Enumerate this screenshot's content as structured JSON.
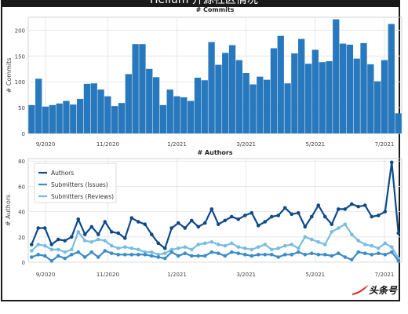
{
  "page": {
    "banner_title": "Helium 开源社区情况",
    "logo_text": "头条号"
  },
  "chart_data": [
    {
      "type": "bar",
      "title": "# Commits",
      "ylabel": "# Commits",
      "xlabel": "",
      "ylim": [
        0,
        225
      ],
      "yticks": [
        0,
        50,
        100,
        150,
        200
      ],
      "xticks": [
        "9/2020",
        "11/2020",
        "1/2021",
        "3/2021",
        "5/2021",
        "7/2021"
      ],
      "xtick_positions": [
        2,
        11,
        21,
        31,
        41,
        51
      ],
      "color": "#2878bd",
      "grid": true,
      "values": [
        55,
        106,
        52,
        55,
        58,
        63,
        56,
        67,
        96,
        97,
        85,
        72,
        53,
        59,
        115,
        173,
        173,
        125,
        109,
        55,
        85,
        72,
        70,
        63,
        108,
        103,
        177,
        133,
        156,
        171,
        142,
        117,
        95,
        110,
        104,
        165,
        189,
        97,
        155,
        183,
        135,
        162,
        138,
        140,
        221,
        174,
        172,
        145,
        175,
        134,
        101,
        142,
        212,
        39
      ]
    },
    {
      "type": "line",
      "title": "# Authors",
      "ylabel": "# Authors",
      "xlabel": "",
      "ylim": [
        0,
        82
      ],
      "yticks": [
        0,
        20,
        40,
        60,
        80
      ],
      "xticks": [
        "9/2020",
        "11/2020",
        "1/2021",
        "3/2021",
        "5/2021",
        "7/2021"
      ],
      "xtick_positions": [
        2,
        11,
        21,
        31,
        41,
        51
      ],
      "grid": true,
      "legend_position": "top-left",
      "series": [
        {
          "name": "Authors",
          "color": "#0d4a8a",
          "values": [
            14,
            27,
            27,
            14,
            18,
            17,
            20,
            34,
            22,
            28,
            22,
            32,
            24,
            23,
            19,
            35,
            32,
            30,
            22,
            15,
            11,
            27,
            31,
            27,
            33,
            28,
            31,
            42,
            30,
            33,
            36,
            34,
            37,
            39,
            29,
            32,
            36,
            37,
            43,
            38,
            39,
            28,
            36,
            45,
            36,
            30,
            42,
            42,
            46,
            44,
            45,
            36,
            37,
            40,
            79,
            23
          ]
        },
        {
          "name": "Submitters (Issues)",
          "color": "#3b8cc7",
          "values": [
            4,
            6,
            5,
            1,
            5,
            3,
            6,
            8,
            4,
            8,
            4,
            9,
            7,
            6,
            6,
            6,
            6,
            6,
            5,
            4,
            3,
            8,
            5,
            7,
            5,
            5,
            5,
            8,
            7,
            5,
            8,
            7,
            6,
            5,
            6,
            6,
            6,
            4,
            6,
            6,
            8,
            6,
            7,
            6,
            6,
            5,
            7,
            4,
            2,
            8,
            7,
            6,
            7,
            6,
            8,
            1
          ]
        },
        {
          "name": "Submitters (Reviews)",
          "color": "#78bde0",
          "values": [
            9,
            14,
            13,
            10,
            10,
            8,
            10,
            24,
            17,
            16,
            18,
            17,
            13,
            11,
            12,
            11,
            10,
            8,
            8,
            6,
            7,
            10,
            11,
            12,
            10,
            14,
            15,
            16,
            14,
            13,
            15,
            12,
            11,
            10,
            12,
            14,
            10,
            11,
            13,
            14,
            11,
            20,
            18,
            16,
            14,
            24,
            27,
            30,
            22,
            17,
            14,
            13,
            11,
            15,
            12,
            3
          ]
        }
      ]
    }
  ]
}
